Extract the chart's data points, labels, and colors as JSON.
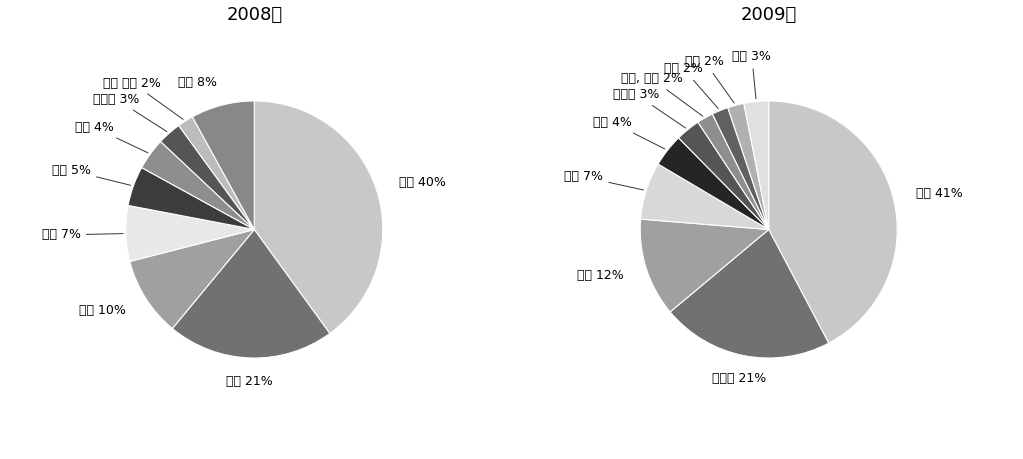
{
  "chart2008": {
    "title": "2008년",
    "labels": [
      "은행",
      "건설",
      "금융",
      "식품",
      "전력",
      "농업",
      "제조업",
      "기계 설비",
      "기타"
    ],
    "values": [
      40,
      21,
      10,
      7,
      5,
      4,
      3,
      2,
      8
    ],
    "colors": [
      "#c8c8c8",
      "#717171",
      "#a0a0a0",
      "#e8e8e8",
      "#3c3c3c",
      "#8e8e8e",
      "#555555",
      "#bcbcbc",
      "#888888"
    ],
    "label_texts": [
      "은행 40%",
      "건설 21%",
      "금융 10%",
      "식품 7%",
      "전력 5%",
      "농업 4%",
      "제조업 3%",
      "기계 설비 2%",
      "기타 8%"
    ]
  },
  "chart2009": {
    "title": "2009년",
    "labels": [
      "은행",
      "자동차",
      "금융",
      "식품",
      "건설",
      "제조업",
      "금속, 광물",
      "무역",
      "전력",
      "기타"
    ],
    "values": [
      41,
      21,
      12,
      7,
      4,
      3,
      2,
      2,
      2,
      3
    ],
    "colors": [
      "#c8c8c8",
      "#717171",
      "#a0a0a0",
      "#d8d8d8",
      "#252525",
      "#555555",
      "#8e8e8e",
      "#606060",
      "#b0b0b0",
      "#e0e0e0"
    ],
    "label_texts": [
      "은행 41%",
      "자동차 21%",
      "금융 12%",
      "식품 7%",
      "건설 4%",
      "제조업 3%",
      "금속, 광물 2%",
      "무역 2%",
      "전력 2%",
      "기타 3%"
    ]
  },
  "background_color": "#ffffff",
  "text_color": "#000000",
  "font_size": 9,
  "title_font_size": 13
}
